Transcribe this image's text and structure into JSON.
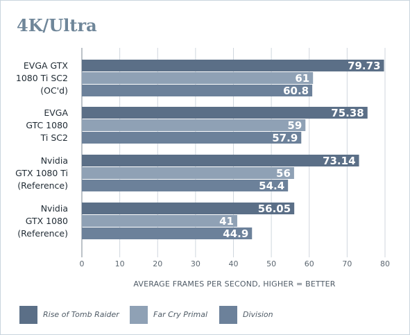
{
  "chart_data": {
    "type": "bar",
    "orientation": "horizontal",
    "title": "4K/Ultra",
    "xlabel": "AVERAGE FRAMES PER SECOND, HIGHER = BETTER",
    "xlim": [
      0,
      80
    ],
    "xticks": [
      0,
      10,
      20,
      30,
      40,
      50,
      60,
      70,
      80
    ],
    "grid": true,
    "legend_position": "bottom",
    "categories": [
      [
        "EVGA GTX",
        "1080 Ti SC2",
        "(OC'd)"
      ],
      [
        "EVGA",
        "GTC 1080",
        "Ti SC2"
      ],
      [
        "Nvidia",
        "GTX 1080 Ti",
        "(Reference)"
      ],
      [
        "Nvidia",
        "GTX 1080",
        "(Reference)"
      ]
    ],
    "series": [
      {
        "name": "Rise of Tomb Raider",
        "color": "#5b6f87",
        "values": [
          79.73,
          75.38,
          73.14,
          56.05
        ],
        "labels": [
          "79.73",
          "75.38",
          "73.14",
          "56.05"
        ]
      },
      {
        "name": "Far Cry Primal",
        "color": "#8fa1b5",
        "values": [
          61,
          59,
          56,
          41
        ],
        "labels": [
          "61",
          "59",
          "56",
          "41"
        ]
      },
      {
        "name": "Division",
        "color": "#6c819a",
        "values": [
          60.8,
          57.9,
          54.4,
          44.9
        ],
        "labels": [
          "60.8",
          "57.9",
          "54.4",
          "44.9"
        ]
      }
    ]
  }
}
